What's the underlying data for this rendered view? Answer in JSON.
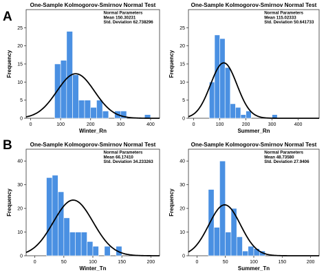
{
  "panel_letters": [
    "A",
    "B"
  ],
  "chart_data": [
    {
      "type": "bar",
      "title": "One-Sample Kolmogorov-Smirnov Normal Test",
      "xlabel": "Winter_Rn",
      "ylabel": "Frequency",
      "annotation": [
        "Normal Parameters",
        "Mean 150.30231",
        "Std. Deviation 62.738296"
      ],
      "mean": 150.30231,
      "std": 62.738296,
      "bin_width": 20,
      "bins": [
        {
          "x0": 80,
          "x1": 100,
          "value": 15
        },
        {
          "x0": 100,
          "x1": 120,
          "value": 16
        },
        {
          "x0": 120,
          "x1": 140,
          "value": 24
        },
        {
          "x0": 140,
          "x1": 160,
          "value": 12
        },
        {
          "x0": 160,
          "x1": 180,
          "value": 5
        },
        {
          "x0": 180,
          "x1": 200,
          "value": 5
        },
        {
          "x0": 200,
          "x1": 220,
          "value": 3
        },
        {
          "x0": 220,
          "x1": 240,
          "value": 5
        },
        {
          "x0": 240,
          "x1": 260,
          "value": 2
        },
        {
          "x0": 280,
          "x1": 300,
          "value": 2
        },
        {
          "x0": 300,
          "x1": 320,
          "value": 2
        },
        {
          "x0": 380,
          "x1": 400,
          "value": 1
        }
      ],
      "xlim": [
        -15,
        430
      ],
      "ylim": [
        0,
        30
      ],
      "xticks": [
        0,
        100,
        200,
        300,
        400
      ],
      "yticks": [
        0,
        5,
        10,
        15,
        20,
        25
      ],
      "curve_peak": 12.3,
      "grid": false,
      "colors": {
        "bar": "#4a90e2",
        "curve": "#000000"
      }
    },
    {
      "type": "bar",
      "title": "One-Sample Kolmogorov-Smirnov Normal Test",
      "xlabel": "Summer_Rn",
      "ylabel": "Frequency",
      "annotation": [
        "Normal Parameters",
        "Mean 115.02333",
        "Std. Deviation 50.641733"
      ],
      "mean": 115.02333,
      "std": 50.641733,
      "bin_width": 20,
      "bins": [
        {
          "x0": 60,
          "x1": 80,
          "value": 10
        },
        {
          "x0": 80,
          "x1": 100,
          "value": 23
        },
        {
          "x0": 100,
          "x1": 120,
          "value": 22
        },
        {
          "x0": 120,
          "x1": 140,
          "value": 14
        },
        {
          "x0": 140,
          "x1": 160,
          "value": 4
        },
        {
          "x0": 160,
          "x1": 180,
          "value": 3
        },
        {
          "x0": 180,
          "x1": 200,
          "value": 1
        },
        {
          "x0": 200,
          "x1": 220,
          "value": 2
        },
        {
          "x0": 300,
          "x1": 320,
          "value": 1
        }
      ],
      "xlim": [
        -20,
        480
      ],
      "ylim": [
        0,
        30
      ],
      "xticks": [
        0,
        100,
        200,
        300,
        400
      ],
      "yticks": [
        0,
        5,
        10,
        15,
        20,
        25
      ],
      "curve_peak": 15.3,
      "grid": false,
      "colors": {
        "bar": "#4a90e2",
        "curve": "#000000"
      }
    },
    {
      "type": "bar",
      "title": "One-Sample Kolmogorov-Smirnov Normal Test",
      "xlabel": "Winter_Tn",
      "ylabel": "Frequency",
      "annotation": [
        "Normal Parameters",
        "Mean 66.17410",
        "Std. Deviation 34.233263"
      ],
      "mean": 66.1741,
      "std": 34.233263,
      "bin_width": 10,
      "bins": [
        {
          "x0": 20,
          "x1": 30,
          "value": 33
        },
        {
          "x0": 30,
          "x1": 40,
          "value": 34
        },
        {
          "x0": 40,
          "x1": 50,
          "value": 27
        },
        {
          "x0": 50,
          "x1": 60,
          "value": 16
        },
        {
          "x0": 60,
          "x1": 70,
          "value": 10
        },
        {
          "x0": 70,
          "x1": 80,
          "value": 10
        },
        {
          "x0": 80,
          "x1": 90,
          "value": 10
        },
        {
          "x0": 90,
          "x1": 100,
          "value": 6
        },
        {
          "x0": 100,
          "x1": 110,
          "value": 4
        },
        {
          "x0": 120,
          "x1": 130,
          "value": 4
        },
        {
          "x0": 140,
          "x1": 150,
          "value": 4
        }
      ],
      "xlim": [
        -15,
        215
      ],
      "ylim": [
        0,
        45
      ],
      "xticks": [
        0,
        50,
        100,
        150,
        200
      ],
      "yticks": [
        0,
        10,
        20,
        30,
        40
      ],
      "curve_peak": 23.5,
      "grid": false,
      "colors": {
        "bar": "#4a90e2",
        "curve": "#000000"
      }
    },
    {
      "type": "bar",
      "title": "One-Sample Kolmogorov-Smirnov Normal Test",
      "xlabel": "Summer_Tn",
      "ylabel": "Frequency",
      "annotation": [
        "Normal Parameters",
        "Mean 48.73580",
        "Std. Deviation 27.9406"
      ],
      "mean": 48.7358,
      "std": 27.9406,
      "bin_width": 10,
      "bins": [
        {
          "x0": 20,
          "x1": 30,
          "value": 28
        },
        {
          "x0": 30,
          "x1": 40,
          "value": 12
        },
        {
          "x0": 40,
          "x1": 50,
          "value": 40
        },
        {
          "x0": 50,
          "x1": 60,
          "value": 10
        },
        {
          "x0": 60,
          "x1": 70,
          "value": 20
        },
        {
          "x0": 70,
          "x1": 80,
          "value": 8
        },
        {
          "x0": 80,
          "x1": 90,
          "value": 2
        },
        {
          "x0": 90,
          "x1": 100,
          "value": 4
        },
        {
          "x0": 100,
          "x1": 110,
          "value": 3
        },
        {
          "x0": 110,
          "x1": 120,
          "value": 2
        }
      ],
      "xlim": [
        -15,
        215
      ],
      "ylim": [
        0,
        45
      ],
      "xticks": [
        0,
        50,
        100,
        150,
        200
      ],
      "yticks": [
        0,
        10,
        20,
        30,
        40
      ],
      "curve_peak": 21.5,
      "grid": false,
      "colors": {
        "bar": "#4a90e2",
        "curve": "#000000"
      }
    }
  ]
}
